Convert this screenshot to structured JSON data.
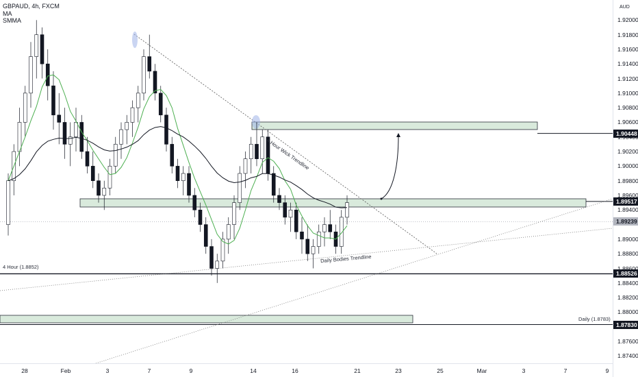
{
  "header": {
    "symbol_line": "GBPAUD, 4h, FXCM",
    "indicators": [
      "MA",
      "SMMA"
    ],
    "currency": "AUD"
  },
  "price_axis": {
    "min": 1.873,
    "max": 1.922,
    "ticks": [
      "1.92000",
      "1.91800",
      "1.91600",
      "1.91400",
      "1.91200",
      "1.91000",
      "1.90800",
      "1.90600",
      "1.90400",
      "1.90200",
      "1.90000",
      "1.89800",
      "1.89600",
      "1.89400",
      "1.89000",
      "1.88800",
      "1.88600",
      "1.88400",
      "1.88200",
      "1.88000",
      "1.87800",
      "1.87600",
      "1.87400"
    ],
    "tags": [
      {
        "label": "1.90448",
        "value": 1.90448,
        "style": "dark"
      },
      {
        "label": "1.89517",
        "value": 1.89517,
        "style": "dark"
      },
      {
        "label": "1.89239",
        "value": 1.89239,
        "style": "gray"
      },
      {
        "label": "1.88526",
        "value": 1.88526,
        "style": "dark"
      },
      {
        "label": "1.87830",
        "value": 1.8783,
        "style": "dark"
      }
    ]
  },
  "time_axis": {
    "labels": [
      "28",
      "Feb",
      "3",
      "7",
      "9",
      "14",
      "16",
      "21",
      "23",
      "25",
      "Mar",
      "3",
      "7",
      "9"
    ]
  },
  "annotations": {
    "four_hour_level": "4 Hour (1.8852)",
    "daily_level": "Daily (1.8783)",
    "daily_bodies_trendline": "Daily Bodies Trendline",
    "four_hour_wick_trendline": "4 Hour Wick Trendline"
  },
  "colors": {
    "bull": "#1e8a2e",
    "bear": "#131722",
    "zone_fill": "#d9eadc",
    "zone_border": "#2a2e39",
    "ma": "#4caf50",
    "smma": "#131722",
    "highlight": "#9fb3e8"
  },
  "chart_data": {
    "type": "candlestick",
    "symbol": "GBPAUD",
    "interval": "4h",
    "indicators": [
      "MA",
      "SMMA"
    ],
    "ohlc": [
      [
        1.892,
        1.899,
        1.8905,
        1.898
      ],
      [
        1.898,
        1.903,
        1.896,
        1.902
      ],
      [
        1.902,
        1.908,
        1.9,
        1.906
      ],
      [
        1.906,
        1.911,
        1.904,
        1.91
      ],
      [
        1.91,
        1.917,
        1.908,
        1.915
      ],
      [
        1.915,
        1.92,
        1.912,
        1.918
      ],
      [
        1.918,
        1.919,
        1.912,
        1.914
      ],
      [
        1.914,
        1.916,
        1.909,
        1.911
      ],
      [
        1.911,
        1.913,
        1.905,
        1.907
      ],
      [
        1.907,
        1.91,
        1.903,
        1.906
      ],
      [
        1.906,
        1.908,
        1.901,
        1.903
      ],
      [
        1.903,
        1.906,
        1.9,
        1.904
      ],
      [
        1.904,
        1.908,
        1.902,
        1.906
      ],
      [
        1.906,
        1.907,
        1.901,
        1.902
      ],
      [
        1.902,
        1.904,
        1.899,
        1.9
      ],
      [
        1.9,
        1.902,
        1.897,
        1.898
      ],
      [
        1.898,
        1.899,
        1.895,
        1.896
      ],
      [
        1.896,
        1.898,
        1.894,
        1.897
      ],
      [
        1.897,
        1.901,
        1.896,
        1.9
      ],
      [
        1.9,
        1.904,
        1.899,
        1.903
      ],
      [
        1.903,
        1.906,
        1.901,
        1.905
      ],
      [
        1.905,
        1.907,
        1.903,
        1.906
      ],
      [
        1.906,
        1.909,
        1.904,
        1.908
      ],
      [
        1.908,
        1.911,
        1.906,
        1.91
      ],
      [
        1.91,
        1.916,
        1.909,
        1.915
      ],
      [
        1.915,
        1.918,
        1.912,
        1.913
      ],
      [
        1.913,
        1.914,
        1.909,
        1.91
      ],
      [
        1.91,
        1.911,
        1.906,
        1.907
      ],
      [
        1.907,
        1.908,
        1.902,
        1.903
      ],
      [
        1.903,
        1.904,
        1.899,
        1.9
      ],
      [
        1.9,
        1.901,
        1.897,
        1.898
      ],
      [
        1.898,
        1.9,
        1.896,
        1.899
      ],
      [
        1.899,
        1.9,
        1.895,
        1.896
      ],
      [
        1.896,
        1.897,
        1.893,
        1.894
      ],
      [
        1.894,
        1.895,
        1.891,
        1.892
      ],
      [
        1.892,
        1.893,
        1.888,
        1.889
      ],
      [
        1.889,
        1.89,
        1.885,
        1.886
      ],
      [
        1.886,
        1.888,
        1.884,
        1.887
      ],
      [
        1.887,
        1.891,
        1.886,
        1.89
      ],
      [
        1.89,
        1.893,
        1.888,
        1.892
      ],
      [
        1.892,
        1.896,
        1.89,
        1.895
      ],
      [
        1.895,
        1.9,
        1.894,
        1.899
      ],
      [
        1.899,
        1.902,
        1.897,
        1.901
      ],
      [
        1.901,
        1.904,
        1.899,
        1.903
      ],
      [
        1.903,
        1.906,
        1.9,
        1.901
      ],
      [
        1.901,
        1.905,
        1.899,
        1.904
      ],
      [
        1.904,
        1.905,
        1.898,
        1.899
      ],
      [
        1.899,
        1.9,
        1.895,
        1.896
      ],
      [
        1.896,
        1.897,
        1.894,
        1.895
      ],
      [
        1.895,
        1.896,
        1.892,
        1.893
      ],
      [
        1.893,
        1.895,
        1.891,
        1.894
      ],
      [
        1.894,
        1.895,
        1.89,
        1.891
      ],
      [
        1.891,
        1.893,
        1.888,
        1.89
      ],
      [
        1.89,
        1.892,
        1.887,
        1.888
      ],
      [
        1.888,
        1.89,
        1.886,
        1.889
      ],
      [
        1.889,
        1.892,
        1.888,
        1.891
      ],
      [
        1.891,
        1.893,
        1.889,
        1.892
      ],
      [
        1.892,
        1.894,
        1.89,
        1.891
      ],
      [
        1.891,
        1.892,
        1.888,
        1.889
      ],
      [
        1.889,
        1.894,
        1.888,
        1.893
      ],
      [
        1.893,
        1.896,
        1.892,
        1.895
      ]
    ]
  }
}
